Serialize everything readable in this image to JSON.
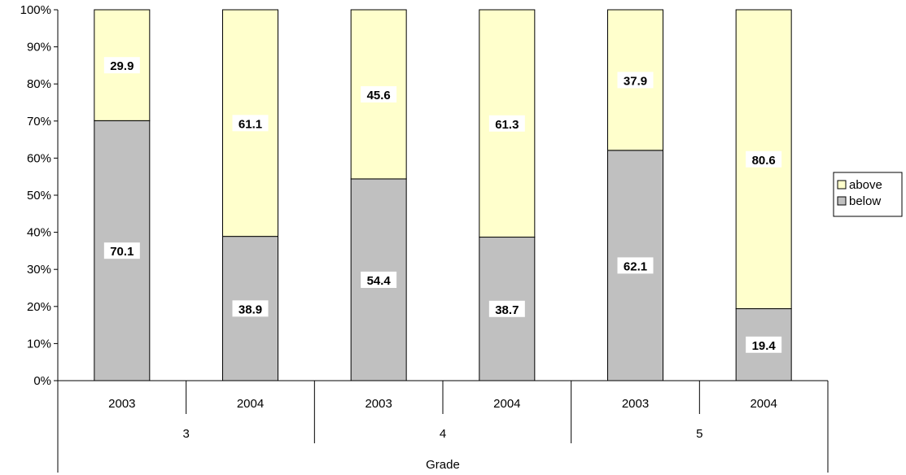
{
  "chart_data": {
    "type": "bar",
    "stacked": "percent",
    "categories": [
      "2003",
      "2004",
      "2003",
      "2004",
      "2003",
      "2004"
    ],
    "groups": [
      {
        "label": "3",
        "span": [
          0,
          1
        ]
      },
      {
        "label": "4",
        "span": [
          2,
          3
        ]
      },
      {
        "label": "5",
        "span": [
          4,
          5
        ]
      }
    ],
    "series": [
      {
        "name": "below",
        "values": [
          70.1,
          38.9,
          54.4,
          38.7,
          62.1,
          19.4
        ],
        "color": "#c0c0c0"
      },
      {
        "name": "above",
        "values": [
          29.9,
          61.1,
          45.6,
          61.3,
          37.9,
          80.6
        ],
        "color": "#ffffcc"
      }
    ],
    "legend_order": [
      "above",
      "below"
    ],
    "title": "",
    "xlabel": "Grade",
    "ylabel": "",
    "ylim": [
      0,
      100
    ],
    "yticks": [
      "0%",
      "10%",
      "20%",
      "30%",
      "40%",
      "50%",
      "60%",
      "70%",
      "80%",
      "90%",
      "100%"
    ],
    "grid": false,
    "legend_position": "right"
  }
}
